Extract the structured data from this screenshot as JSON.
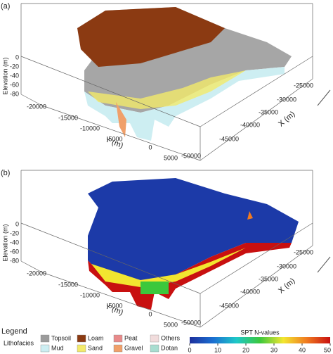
{
  "panels": [
    {
      "label": "(a)",
      "z_axis": {
        "title": "Elevation (m)",
        "ticks": [
          "0",
          "-20",
          "-40",
          "-60",
          "-80"
        ]
      },
      "y_axis": {
        "title": "Y (m)",
        "ticks": [
          "-20000",
          "-15000",
          "-10000",
          "-5000",
          "0",
          "5000"
        ]
      },
      "x_axis": {
        "title": "X (m)",
        "ticks": [
          "-25000",
          "-30000",
          "-35000",
          "-40000",
          "-45000",
          "-50000"
        ]
      }
    },
    {
      "label": "(b)",
      "z_axis": {
        "title": "Elevation (m)",
        "ticks": [
          "0",
          "-20",
          "-40",
          "-60",
          "-80"
        ]
      },
      "y_axis": {
        "title": "Y (m)",
        "ticks": [
          "-20000",
          "-15000",
          "-10000",
          "-5000",
          "0",
          "5000"
        ]
      },
      "x_axis": {
        "title": "X (m)",
        "ticks": [
          "-25000",
          "-30000",
          "-35000",
          "-40000",
          "-45000",
          "-50000"
        ]
      }
    }
  ],
  "legend": {
    "title": "Legend",
    "lithofacies": {
      "title": "Lithofacies",
      "items": [
        {
          "name": "Topsoil",
          "color": "#9b9b9b"
        },
        {
          "name": "Loam",
          "color": "#8b3a12"
        },
        {
          "name": "Peat",
          "color": "#e88a8a"
        },
        {
          "name": "Others",
          "color": "#f1dcdc"
        },
        {
          "name": "Mud",
          "color": "#cdeef2"
        },
        {
          "name": "Sand",
          "color": "#f3ea6a"
        },
        {
          "name": "Gravel",
          "color": "#f0a06a"
        },
        {
          "name": "Dotan",
          "color": "#a8ddd0"
        }
      ]
    },
    "colorbar": {
      "title": "SPT N-values",
      "ticks": [
        "0",
        "10",
        "20",
        "30",
        "40",
        "50"
      ],
      "colors": [
        "#1c2f9c",
        "#1b6fd1",
        "#1ec8c8",
        "#3cc83c",
        "#f2e630",
        "#f07a20",
        "#c81010"
      ]
    }
  }
}
